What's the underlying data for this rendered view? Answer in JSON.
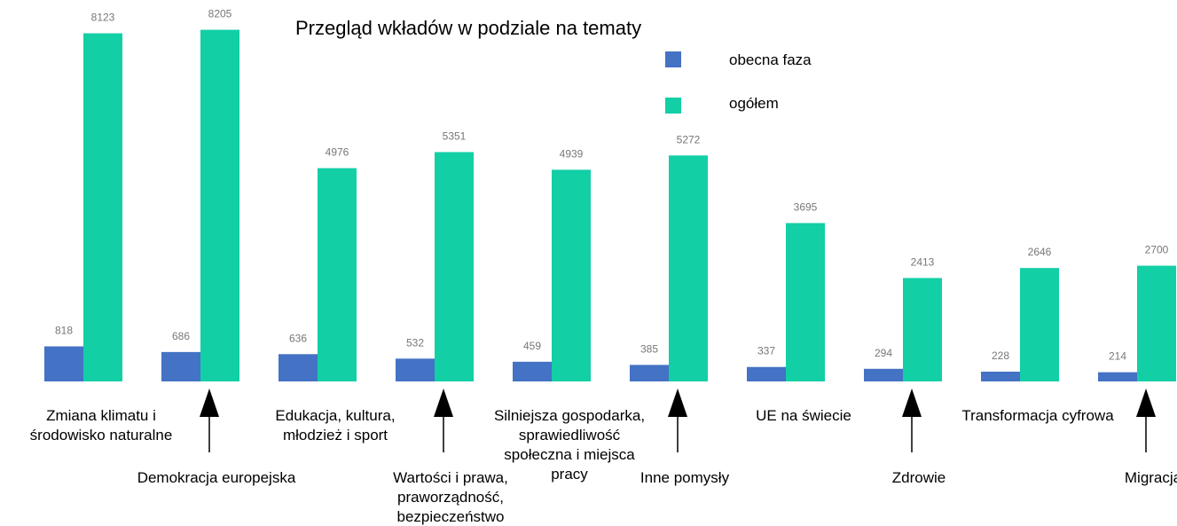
{
  "chart_data": {
    "type": "bar",
    "title": "Przegląd wkładów w podziale na tematy",
    "categories": [
      "Zmiana klimatu i środowisko naturalne",
      "Demokracja europejska",
      "Edukacja, kultura, młodzież i sport",
      "Wartości i prawa, praworządność, bezpieczeństwo",
      "Silniejsza gospodarka, sprawiedliwość społeczna i miejsca pracy",
      "Inne pomysły",
      "UE na świecie",
      "Zdrowie",
      "Transformacja cyfrowa",
      "Migracja"
    ],
    "series": [
      {
        "name": "obecna faza",
        "color": "#4472c4",
        "values": [
          818,
          686,
          636,
          532,
          459,
          385,
          337,
          294,
          228,
          214
        ]
      },
      {
        "name": "ogółem",
        "color": "#12cfa6",
        "values": [
          8123,
          8205,
          4976,
          5351,
          4939,
          5272,
          3695,
          2413,
          2646,
          2700
        ]
      }
    ],
    "ylim": [
      0,
      8900
    ],
    "legend": "top-right"
  }
}
